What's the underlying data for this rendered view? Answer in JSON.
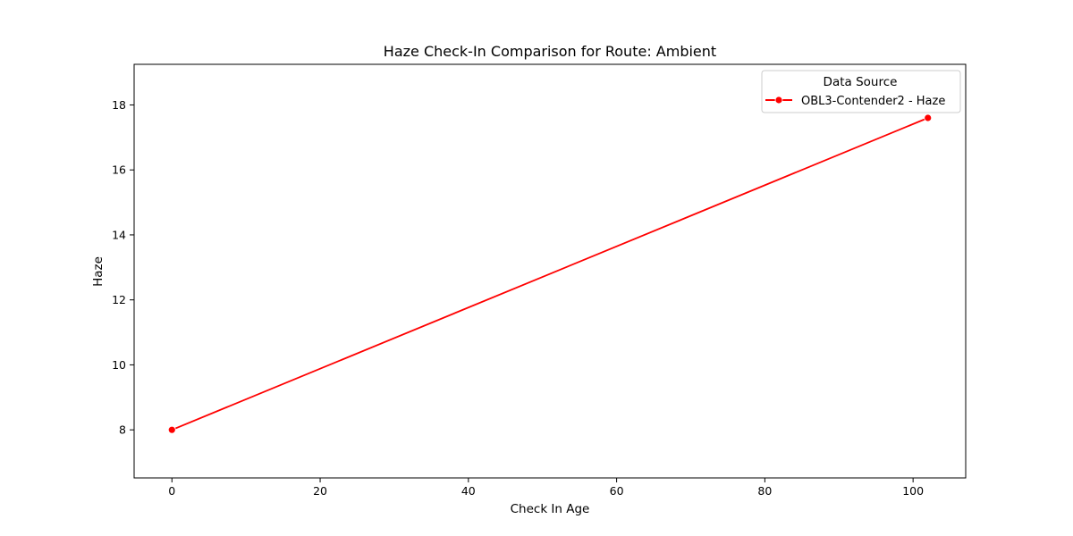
{
  "chart_data": {
    "type": "line",
    "title": "Haze Check-In Comparison for Route: Ambient",
    "xlabel": "Check In Age",
    "ylabel": "Haze",
    "xlim": [
      -5.1,
      107.1
    ],
    "ylim": [
      6.52,
      19.25
    ],
    "xticks": [
      0,
      20,
      40,
      60,
      80,
      100
    ],
    "yticks": [
      8,
      10,
      12,
      14,
      16,
      18
    ],
    "grid": false,
    "legend": {
      "title": "Data Source",
      "placement": "top-right"
    },
    "series": [
      {
        "name": "OBL3-Contender2 - Haze",
        "color": "#ff0000",
        "marker": "circle",
        "x": [
          0,
          102
        ],
        "y": [
          8.0,
          17.6
        ]
      }
    ]
  }
}
